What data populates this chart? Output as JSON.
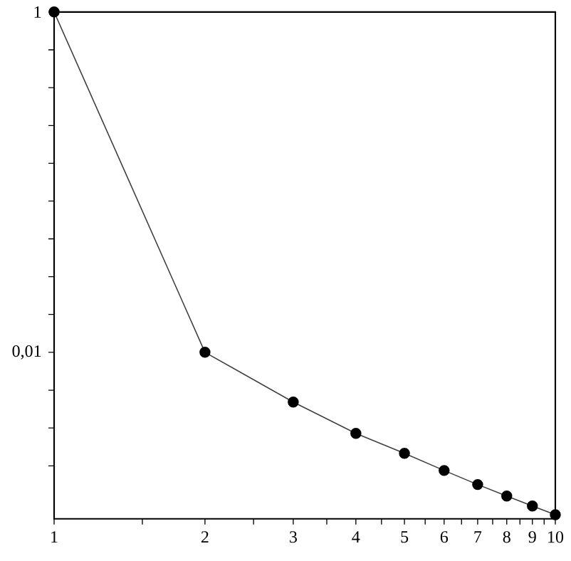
{
  "chart_data": {
    "type": "line",
    "log": "xy",
    "marker": "circle",
    "line_style": "solid",
    "x": [
      1,
      2,
      3,
      4,
      5,
      6,
      7,
      8,
      9,
      10
    ],
    "series": [
      {
        "color": "#000000",
        "values": [
          1,
          0.01,
          0.0051,
          0.00334,
          0.00255,
          0.00202,
          0.00167,
          0.00143,
          0.00125,
          0.00111
        ]
      }
    ],
    "xlim": [
      1,
      10
    ],
    "ylim": [
      0.00105,
      1
    ],
    "xticks": [
      1,
      {
        "value": 1.5,
        "label": null
      },
      2,
      {
        "value": 2.5,
        "label": null
      },
      3,
      {
        "value": 3.5,
        "label": null
      },
      4,
      {
        "value": 4.5,
        "label": null
      },
      5,
      {
        "value": 5.5,
        "label": null
      },
      6,
      {
        "value": 6.5,
        "label": null
      },
      7,
      {
        "value": 7.5,
        "label": null
      },
      8,
      {
        "value": 8.5,
        "label": null
      },
      9,
      {
        "value": 9.5,
        "label": null
      },
      10
    ],
    "yticks": [
      {
        "value": 0.00215,
        "label": null
      },
      {
        "value": 0.00359,
        "label": null
      },
      {
        "value": 0.00599,
        "label": null
      },
      {
        "value": 0.01,
        "label": "0,01"
      },
      {
        "value": 0.0167,
        "label": null
      },
      {
        "value": 0.0278,
        "label": null
      },
      {
        "value": 0.0464,
        "label": null
      },
      {
        "value": 0.0774,
        "label": null
      },
      {
        "value": 0.129,
        "label": null
      },
      {
        "value": 0.215,
        "label": null
      },
      {
        "value": 0.359,
        "label": null
      },
      {
        "value": 0.599,
        "label": null
      },
      {
        "value": 1,
        "label": "1"
      }
    ]
  }
}
